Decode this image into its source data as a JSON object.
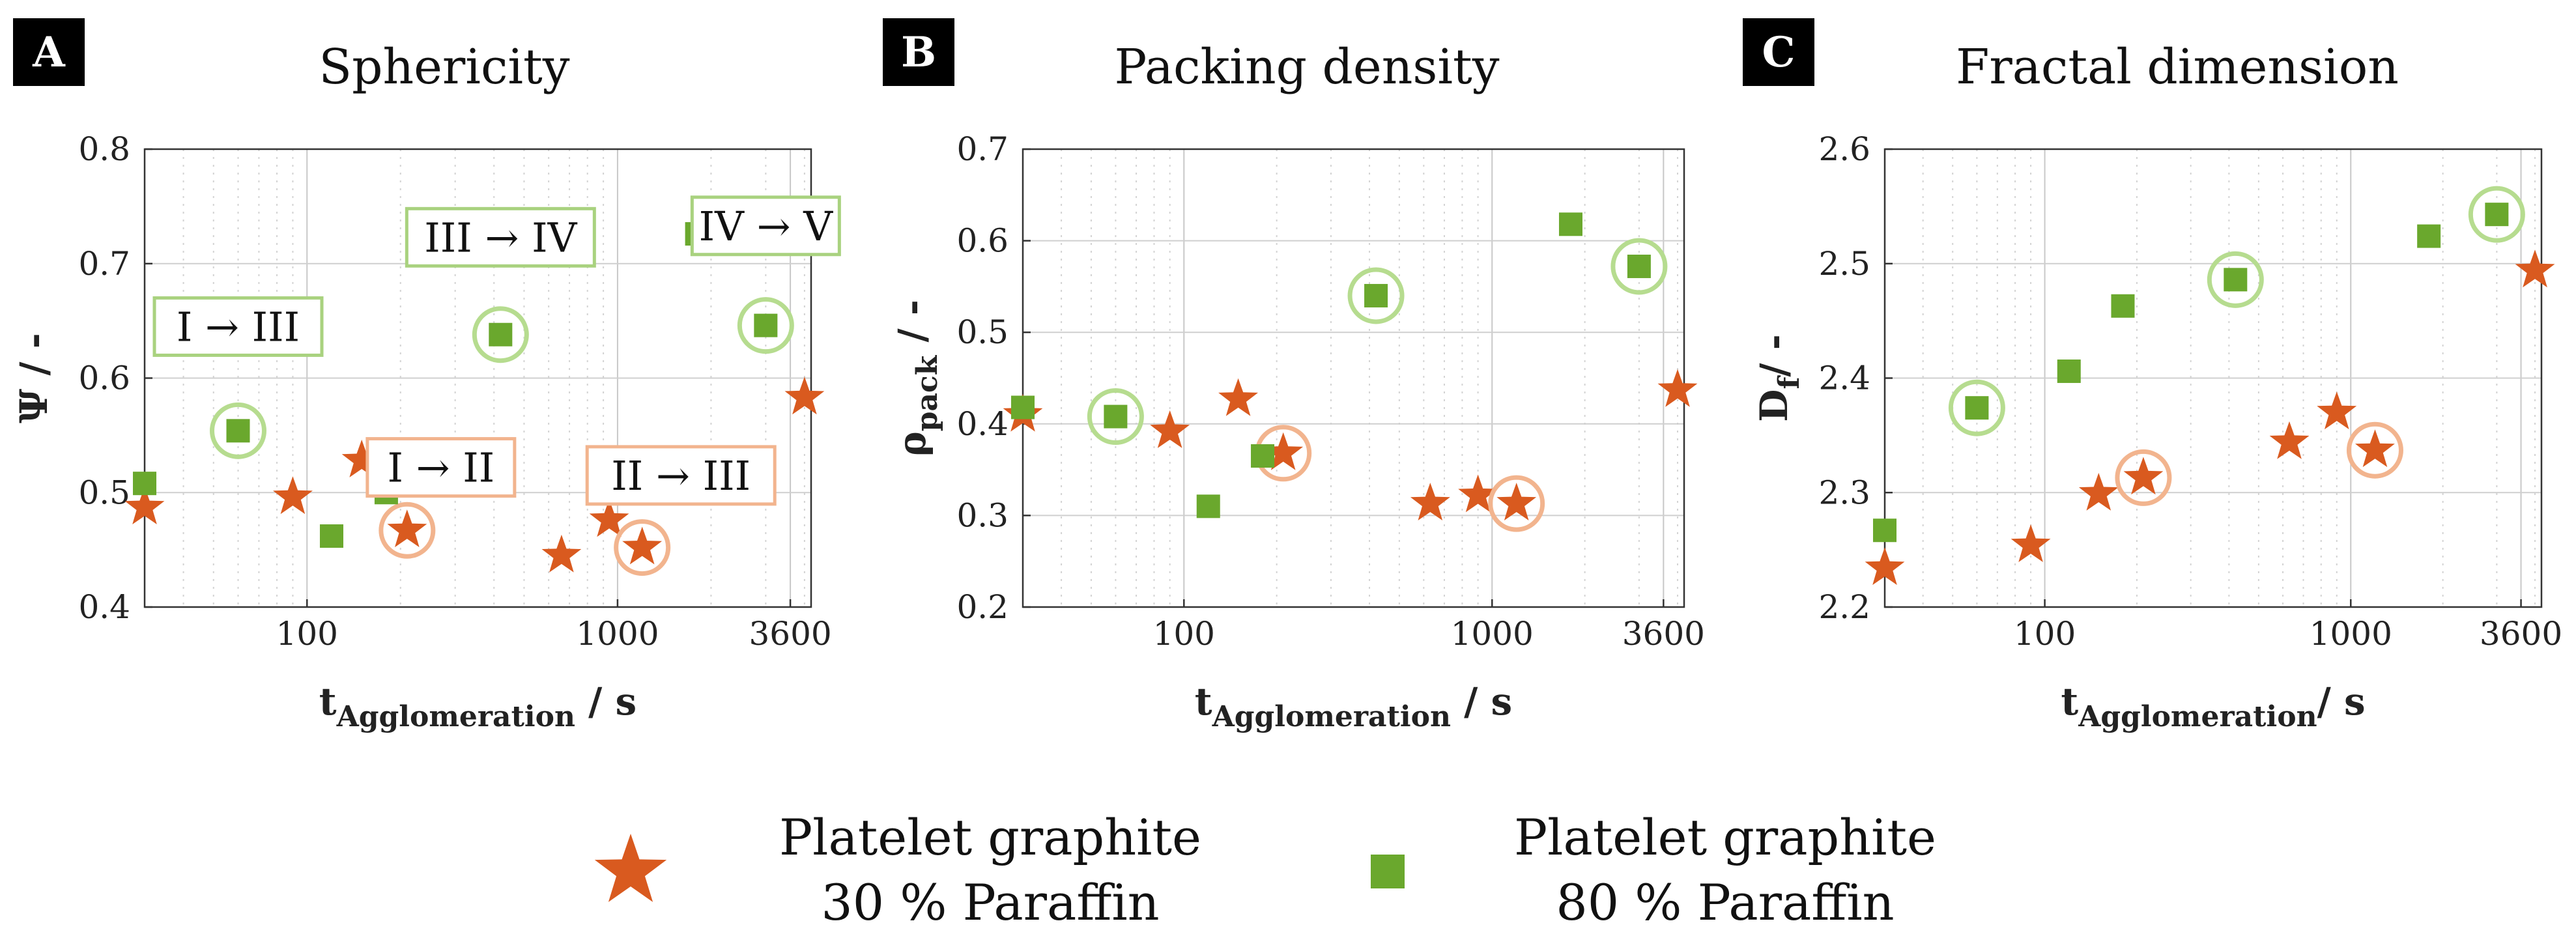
{
  "colors": {
    "series_30": "#d95a1f",
    "series_80": "#6aa82d",
    "ring_30": "#f2b48e",
    "ring_80": "#b6dc8f",
    "box_30": "#f2b48e",
    "box_80": "#a9d27f",
    "grid": "#d3d3d3"
  },
  "legend": {
    "items": [
      {
        "line1": "Platelet graphite",
        "line2": "30 % Paraffin",
        "marker": "star-icon"
      },
      {
        "line1": "Platelet graphite",
        "line2": "80 % Paraffin",
        "marker": "square-icon"
      }
    ]
  },
  "chart_data": [
    {
      "type": "scatter",
      "letter": "A",
      "title": "Sphericity",
      "ylabel": {
        "main": "Ψ",
        "sub": "",
        "suffix": " / -"
      },
      "xlabel": {
        "main": "t",
        "sub": "Agglomeration",
        "suffix": " / s"
      },
      "x_scale": "log",
      "xlim": [
        30,
        4200
      ],
      "ylim": [
        0.4,
        0.8
      ],
      "xticks": [
        {
          "value": 100,
          "label": "100"
        },
        {
          "value": 1000,
          "label": "1000"
        },
        {
          "value": 3600,
          "label": "3600"
        }
      ],
      "yticks": [
        {
          "value": 0.4,
          "label": "0.4"
        },
        {
          "value": 0.5,
          "label": "0.5"
        },
        {
          "value": 0.6,
          "label": "0.6"
        },
        {
          "value": 0.7,
          "label": "0.7"
        },
        {
          "value": 0.8,
          "label": "0.8"
        }
      ],
      "grid": true,
      "series": [
        {
          "name": "Platelet graphite 30 % Paraffin",
          "marker": "star",
          "points": [
            {
              "x": 30,
              "y": 0.487
            },
            {
              "x": 90,
              "y": 0.496
            },
            {
              "x": 150,
              "y": 0.528
            },
            {
              "x": 210,
              "y": 0.467,
              "circled": true
            },
            {
              "x": 660,
              "y": 0.445
            },
            {
              "x": 940,
              "y": 0.476
            },
            {
              "x": 1200,
              "y": 0.452,
              "circled": true
            },
            {
              "x": 4000,
              "y": 0.583
            }
          ]
        },
        {
          "name": "Platelet graphite 80 % Paraffin",
          "marker": "square",
          "points": [
            {
              "x": 30,
              "y": 0.508
            },
            {
              "x": 60,
              "y": 0.554,
              "circled": true
            },
            {
              "x": 120,
              "y": 0.462
            },
            {
              "x": 180,
              "y": 0.5
            },
            {
              "x": 420,
              "y": 0.638,
              "circled": true
            },
            {
              "x": 1800,
              "y": 0.726
            },
            {
              "x": 3000,
              "y": 0.646,
              "circled": true
            }
          ]
        }
      ],
      "annotations": [
        {
          "text": "I → III",
          "style": "green",
          "x": 60,
          "y": 0.645
        },
        {
          "text": "III → IV",
          "style": "green",
          "x": 420,
          "y": 0.723
        },
        {
          "text": "IV → V",
          "style": "green",
          "x": 3000,
          "y": 0.733
        },
        {
          "text": "I → II",
          "style": "orange",
          "x": 270,
          "y": 0.522
        },
        {
          "text": "II → III",
          "style": "orange",
          "x": 1600,
          "y": 0.515
        }
      ]
    },
    {
      "type": "scatter",
      "letter": "B",
      "title": "Packing density",
      "ylabel": {
        "main": "ρ",
        "sub": "pack",
        "suffix": " / -"
      },
      "xlabel": {
        "main": "t",
        "sub": "Agglomeration",
        "suffix": " / s"
      },
      "x_scale": "log",
      "xlim": [
        30,
        4200
      ],
      "ylim": [
        0.2,
        0.7
      ],
      "xticks": [
        {
          "value": 100,
          "label": "100"
        },
        {
          "value": 1000,
          "label": "1000"
        },
        {
          "value": 3600,
          "label": "3600"
        }
      ],
      "yticks": [
        {
          "value": 0.2,
          "label": "0.2"
        },
        {
          "value": 0.3,
          "label": "0.3"
        },
        {
          "value": 0.4,
          "label": "0.4"
        },
        {
          "value": 0.5,
          "label": "0.5"
        },
        {
          "value": 0.6,
          "label": "0.6"
        },
        {
          "value": 0.7,
          "label": "0.7"
        }
      ],
      "grid": true,
      "series": [
        {
          "name": "Platelet graphite 30 % Paraffin",
          "marker": "star",
          "points": [
            {
              "x": 30,
              "y": 0.41
            },
            {
              "x": 90,
              "y": 0.392
            },
            {
              "x": 150,
              "y": 0.427
            },
            {
              "x": 210,
              "y": 0.368,
              "circled": true
            },
            {
              "x": 630,
              "y": 0.313
            },
            {
              "x": 900,
              "y": 0.322
            },
            {
              "x": 1200,
              "y": 0.313,
              "circled": true
            },
            {
              "x": 4000,
              "y": 0.437
            }
          ]
        },
        {
          "name": "Platelet graphite 80 % Paraffin",
          "marker": "square",
          "points": [
            {
              "x": 30,
              "y": 0.418
            },
            {
              "x": 60,
              "y": 0.408,
              "circled": true
            },
            {
              "x": 120,
              "y": 0.31
            },
            {
              "x": 180,
              "y": 0.365
            },
            {
              "x": 420,
              "y": 0.54,
              "circled": true
            },
            {
              "x": 1800,
              "y": 0.618
            },
            {
              "x": 3000,
              "y": 0.572,
              "circled": true
            }
          ]
        }
      ],
      "annotations": []
    },
    {
      "type": "scatter",
      "letter": "C",
      "title": "Fractal dimension",
      "ylabel": {
        "main": "D",
        "sub": "f",
        "suffix": "/ -"
      },
      "xlabel": {
        "main": "t",
        "sub": "Agglomeration",
        "suffix": "/ s"
      },
      "x_scale": "log",
      "xlim": [
        30,
        4200
      ],
      "ylim": [
        2.2,
        2.6
      ],
      "xticks": [
        {
          "value": 100,
          "label": "100"
        },
        {
          "value": 1000,
          "label": "1000"
        },
        {
          "value": 3600,
          "label": "3600"
        }
      ],
      "yticks": [
        {
          "value": 2.2,
          "label": "2.2"
        },
        {
          "value": 2.3,
          "label": "2.3"
        },
        {
          "value": 2.4,
          "label": "2.4"
        },
        {
          "value": 2.5,
          "label": "2.5"
        },
        {
          "value": 2.6,
          "label": "2.6"
        }
      ],
      "grid": true,
      "series": [
        {
          "name": "Platelet graphite 30 % Paraffin",
          "marker": "star",
          "points": [
            {
              "x": 30,
              "y": 2.234
            },
            {
              "x": 90,
              "y": 2.254
            },
            {
              "x": 150,
              "y": 2.299
            },
            {
              "x": 210,
              "y": 2.313,
              "circled": true
            },
            {
              "x": 630,
              "y": 2.344
            },
            {
              "x": 900,
              "y": 2.37
            },
            {
              "x": 1200,
              "y": 2.337,
              "circled": true
            },
            {
              "x": 4000,
              "y": 2.494
            }
          ]
        },
        {
          "name": "Platelet graphite 80 % Paraffin",
          "marker": "square",
          "points": [
            {
              "x": 30,
              "y": 2.267
            },
            {
              "x": 60,
              "y": 2.374,
              "circled": true
            },
            {
              "x": 120,
              "y": 2.406
            },
            {
              "x": 180,
              "y": 2.463
            },
            {
              "x": 420,
              "y": 2.486,
              "circled": true
            },
            {
              "x": 1800,
              "y": 2.524
            },
            {
              "x": 3000,
              "y": 2.543,
              "circled": true
            }
          ]
        }
      ],
      "annotations": []
    }
  ]
}
